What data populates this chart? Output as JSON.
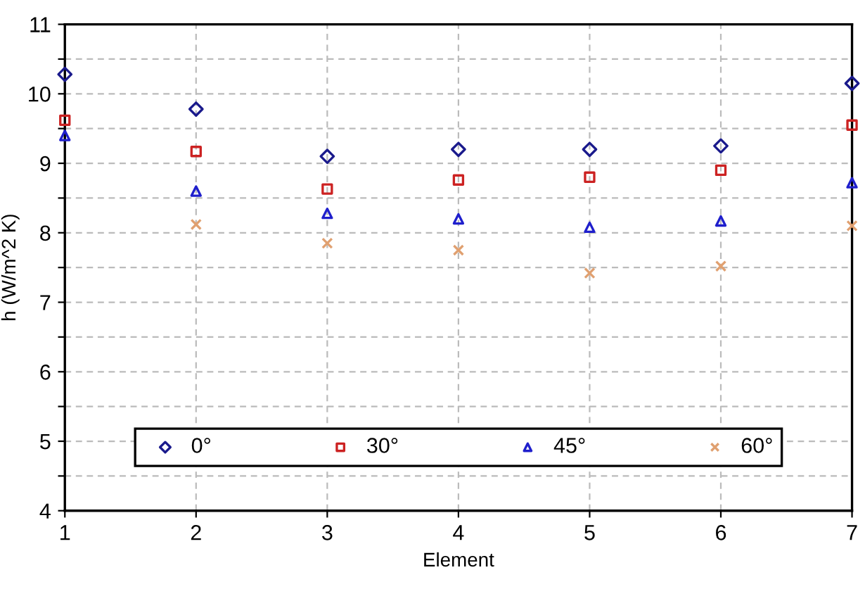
{
  "chart_data": {
    "type": "scatter",
    "xlabel": "Element",
    "ylabel": "h (W/m^2 K)",
    "x": [
      1,
      2,
      3,
      4,
      5,
      6,
      7
    ],
    "series": [
      {
        "name": "0°",
        "color": "#1a1a8c",
        "marker": "diamond",
        "values": [
          10.28,
          9.78,
          9.1,
          9.2,
          9.2,
          9.25,
          10.15
        ]
      },
      {
        "name": "30°",
        "color": "#cc2222",
        "marker": "square",
        "values": [
          9.62,
          9.17,
          8.63,
          8.76,
          8.8,
          8.9,
          9.55
        ]
      },
      {
        "name": "45°",
        "color": "#1f1fcc",
        "marker": "triangle",
        "values": [
          9.4,
          8.6,
          8.28,
          8.2,
          8.08,
          8.17,
          8.72
        ]
      },
      {
        "name": "60°",
        "color": "#e0a070",
        "marker": "cross",
        "values": [
          null,
          8.12,
          7.85,
          7.75,
          7.42,
          7.52,
          8.1
        ]
      }
    ],
    "xlim": [
      1,
      7
    ],
    "xticks": [
      1,
      2,
      3,
      4,
      5,
      6,
      7
    ],
    "ylim": [
      4,
      11
    ],
    "yticks": [
      4,
      {
        "value": 4.5,
        "label": null
      },
      5,
      {
        "value": 5.5,
        "label": null
      },
      6,
      {
        "value": 6.5,
        "label": null
      },
      7,
      {
        "value": 7.5,
        "label": null
      },
      8,
      {
        "value": 8.5,
        "label": null
      },
      9,
      {
        "value": 9.5,
        "label": null
      },
      10,
      {
        "value": 10.5,
        "label": null
      },
      11
    ],
    "grid": true,
    "legend": "bottom"
  }
}
